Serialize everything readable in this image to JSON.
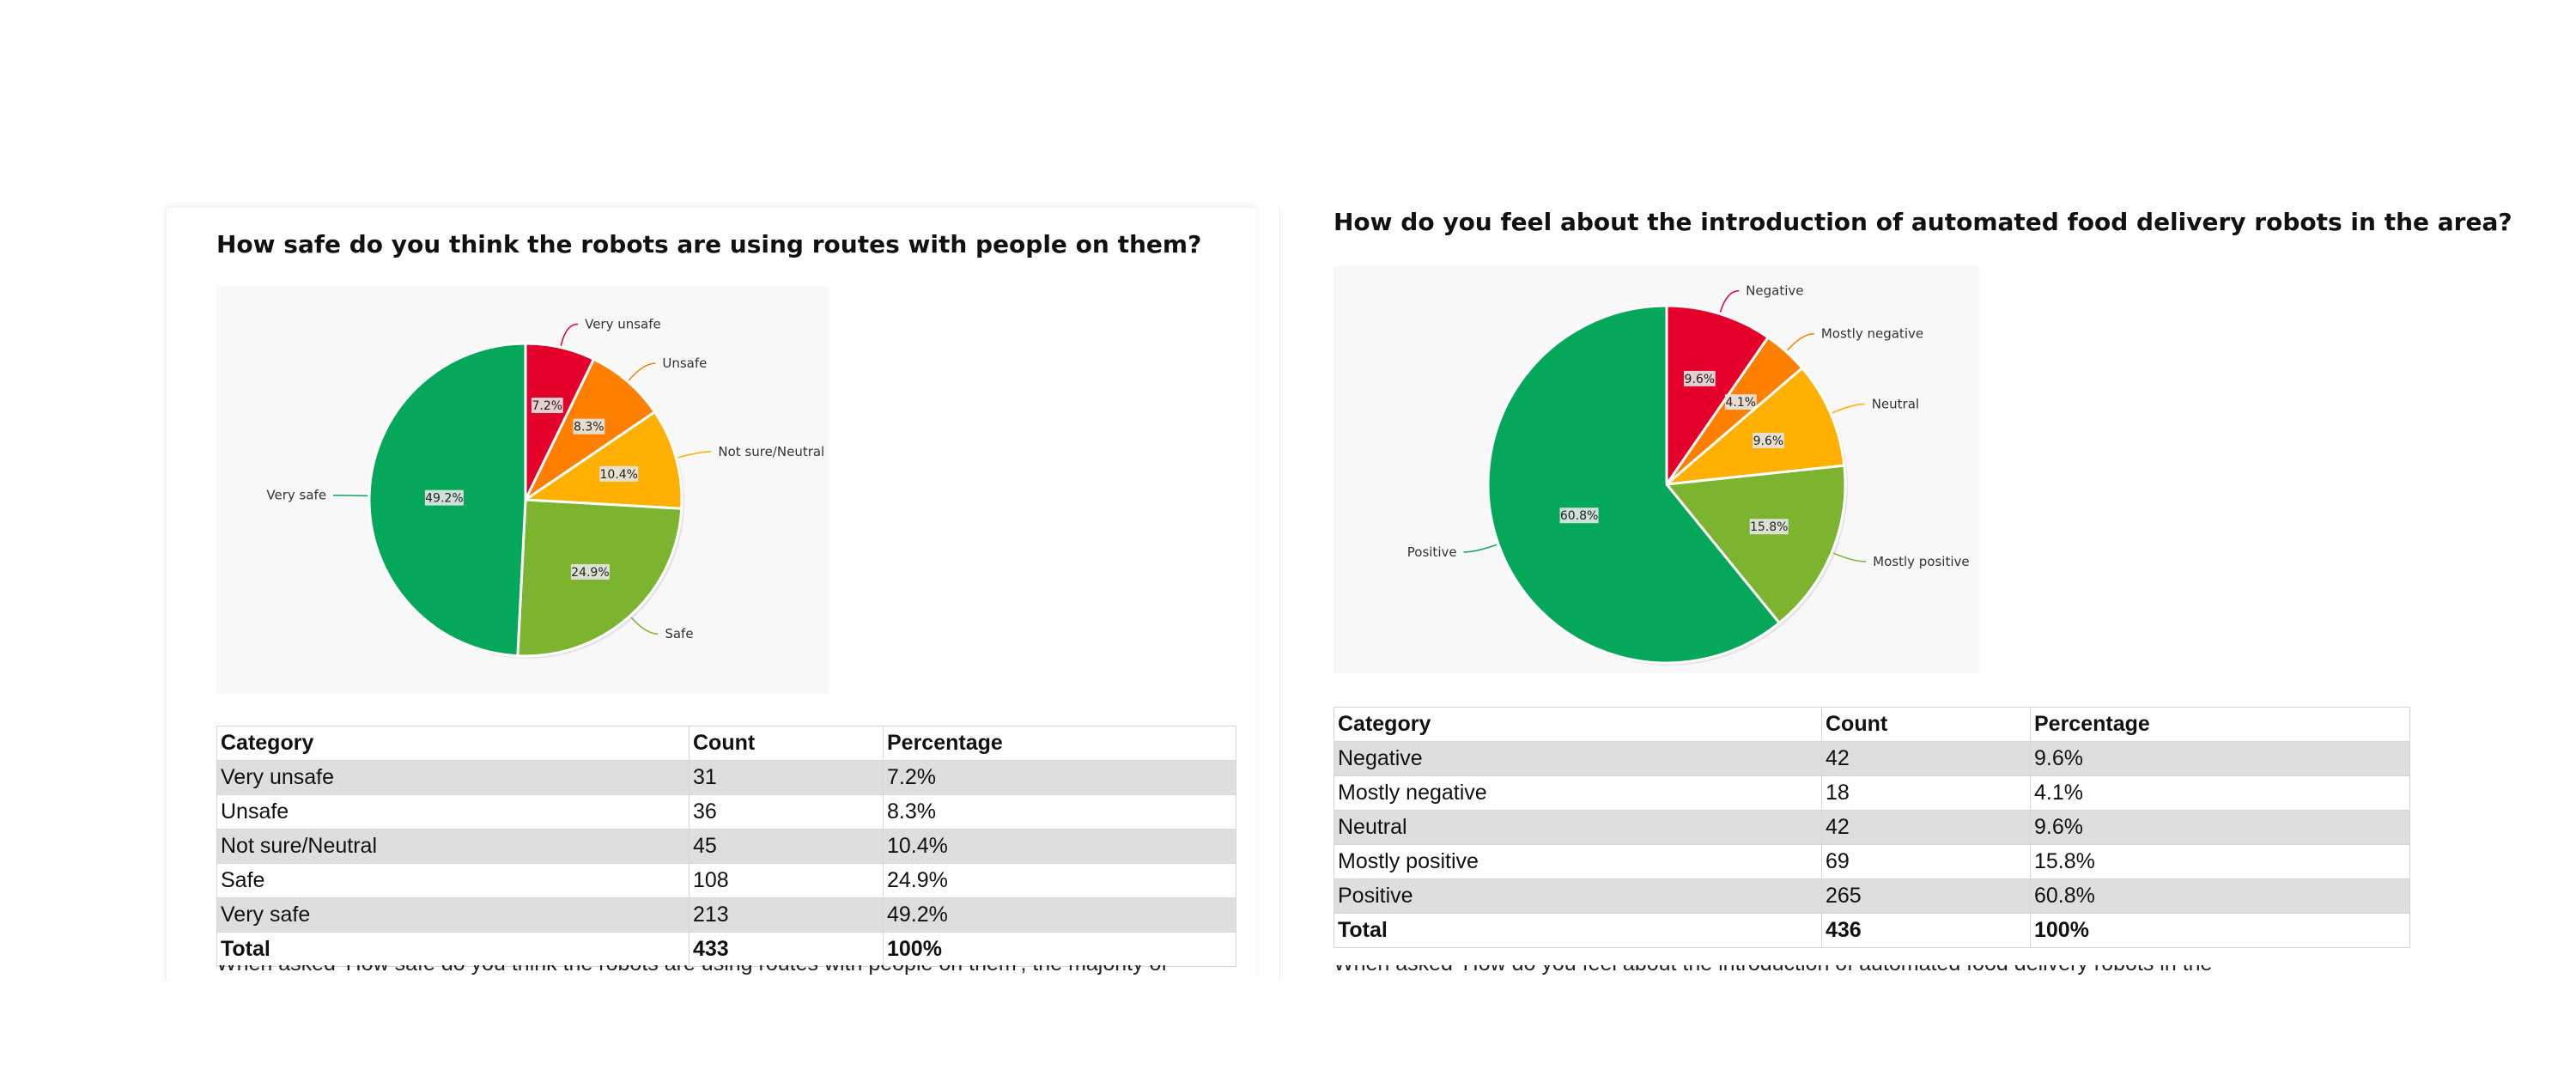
{
  "charts": [
    {
      "title": "How safe do you think the robots are using routes with people on them?",
      "table": {
        "headers": [
          "Category",
          "Count",
          "Percentage"
        ],
        "rows": [
          [
            "Very unsafe",
            "31",
            "7.2%"
          ],
          [
            "Unsafe",
            "36",
            "8.3%"
          ],
          [
            "Not sure/Neutral",
            "45",
            "10.4%"
          ],
          [
            "Safe",
            "108",
            "24.9%"
          ],
          [
            "Very safe",
            "213",
            "49.2%"
          ]
        ],
        "total": [
          "Total",
          "433",
          "100%"
        ]
      },
      "trailing_text": "When asked 'How safe do you think the robots are using routes with people on them', the majority of"
    },
    {
      "title": "How do you feel about the introduction of automated food delivery robots in the area?",
      "table": {
        "headers": [
          "Category",
          "Count",
          "Percentage"
        ],
        "rows": [
          [
            "Negative",
            "42",
            "9.6%"
          ],
          [
            "Mostly negative",
            "18",
            "4.1%"
          ],
          [
            "Neutral",
            "42",
            "9.6%"
          ],
          [
            "Mostly positive",
            "69",
            "15.8%"
          ],
          [
            "Positive",
            "265",
            "60.8%"
          ]
        ],
        "total": [
          "Total",
          "436",
          "100%"
        ]
      },
      "trailing_text": "When asked 'How do you feel about the introduction of automated food delivery robots in the"
    }
  ],
  "chart_data": [
    {
      "type": "pie",
      "title": "How safe do you think the robots are using routes with people on them?",
      "slices": [
        {
          "label": "Very unsafe",
          "value": 7.2,
          "data_label": "7.2%",
          "color": "#e4002b"
        },
        {
          "label": "Unsafe",
          "value": 8.3,
          "data_label": "8.3%",
          "color": "#ff7f00"
        },
        {
          "label": "Not sure/Neutral",
          "value": 10.4,
          "data_label": "10.4%",
          "color": "#ffb000"
        },
        {
          "label": "Safe",
          "value": 24.9,
          "data_label": "24.9%",
          "color": "#7cb32f"
        },
        {
          "label": "Very safe",
          "value": 49.2,
          "data_label": "49.2%",
          "color": "#05a85a"
        }
      ]
    },
    {
      "type": "pie",
      "title": "How do you feel about the introduction of automated food delivery robots in the area?",
      "slices": [
        {
          "label": "Negative",
          "value": 9.6,
          "data_label": "9.6%",
          "color": "#e4002b"
        },
        {
          "label": "Mostly negative",
          "value": 4.1,
          "data_label": "4.1%",
          "color": "#ff7f00"
        },
        {
          "label": "Neutral",
          "value": 9.6,
          "data_label": "9.6%",
          "color": "#ffb000"
        },
        {
          "label": "Mostly positive",
          "value": 15.8,
          "data_label": "15.8%",
          "color": "#7cb32f"
        },
        {
          "label": "Positive",
          "value": 60.8,
          "data_label": "60.8%",
          "color": "#05a85a"
        }
      ]
    }
  ]
}
